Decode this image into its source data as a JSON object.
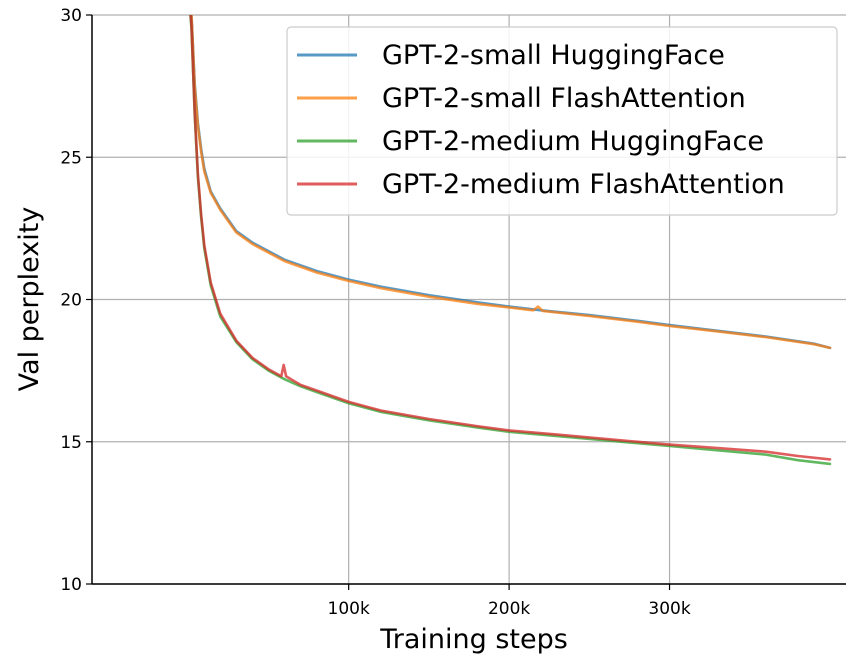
{
  "chart_data": {
    "type": "line",
    "title": "",
    "xlabel": "Training steps",
    "ylabel": "Val perplexity",
    "xlim": [
      -60000,
      410000
    ],
    "ylim": [
      10,
      30
    ],
    "x_ticks": [
      100000,
      200000,
      300000
    ],
    "x_tick_labels": [
      "100k",
      "200k",
      "300k"
    ],
    "y_ticks": [
      10,
      15,
      20,
      25,
      30
    ],
    "y_tick_labels": [
      "10",
      "15",
      "20",
      "25",
      "30"
    ],
    "grid": true,
    "legend_position": "top-right",
    "series": [
      {
        "name": "GPT-2-small HuggingFace",
        "color": "#1f77b4",
        "x": [
          0,
          2000,
          4000,
          6000,
          8000,
          10000,
          14000,
          20000,
          30000,
          40000,
          60000,
          80000,
          100000,
          120000,
          150000,
          180000,
          200000,
          220000,
          250000,
          280000,
          300000,
          330000,
          360000,
          390000,
          400000
        ],
        "y": [
          31,
          30,
          27.6,
          26.2,
          25.3,
          24.6,
          23.8,
          23.2,
          22.4,
          22.0,
          21.4,
          21.0,
          20.7,
          20.45,
          20.15,
          19.9,
          19.75,
          19.62,
          19.45,
          19.25,
          19.1,
          18.9,
          18.7,
          18.45,
          18.3
        ]
      },
      {
        "name": "GPT-2-small FlashAttention",
        "color": "#ff7f0e",
        "x": [
          0,
          2000,
          4000,
          6000,
          8000,
          10000,
          14000,
          20000,
          30000,
          40000,
          60000,
          80000,
          100000,
          120000,
          150000,
          180000,
          200000,
          215000,
          218000,
          221000,
          250000,
          280000,
          300000,
          330000,
          360000,
          390000,
          400000
        ],
        "y": [
          31,
          30,
          27.5,
          26.1,
          25.2,
          24.5,
          23.75,
          23.15,
          22.35,
          21.95,
          21.35,
          20.95,
          20.65,
          20.4,
          20.1,
          19.85,
          19.72,
          19.62,
          19.75,
          19.6,
          19.42,
          19.22,
          19.07,
          18.88,
          18.68,
          18.43,
          18.3
        ]
      },
      {
        "name": "GPT-2-medium HuggingFace",
        "color": "#2ca02c",
        "x": [
          0,
          2000,
          4000,
          6000,
          8000,
          10000,
          14000,
          20000,
          30000,
          40000,
          50000,
          60000,
          70000,
          80000,
          100000,
          120000,
          150000,
          180000,
          200000,
          230000,
          260000,
          300000,
          330000,
          360000,
          380000,
          400000
        ],
        "y": [
          31,
          29.5,
          26.5,
          24.3,
          22.9,
          21.8,
          20.5,
          19.4,
          18.5,
          17.9,
          17.5,
          17.2,
          16.95,
          16.75,
          16.35,
          16.05,
          15.75,
          15.5,
          15.35,
          15.2,
          15.05,
          14.85,
          14.7,
          14.55,
          14.35,
          14.22
        ]
      },
      {
        "name": "GPT-2-medium FlashAttention",
        "color": "#d62728",
        "x": [
          0,
          2000,
          4000,
          6000,
          8000,
          10000,
          14000,
          20000,
          30000,
          40000,
          50000,
          58000,
          59500,
          61000,
          62500,
          70000,
          80000,
          100000,
          120000,
          150000,
          180000,
          200000,
          230000,
          260000,
          300000,
          330000,
          360000,
          380000,
          400000
        ],
        "y": [
          31,
          29.6,
          26.6,
          24.4,
          23.0,
          21.9,
          20.6,
          19.5,
          18.55,
          17.95,
          17.55,
          17.3,
          17.7,
          17.3,
          17.25,
          17.0,
          16.8,
          16.4,
          16.1,
          15.8,
          15.55,
          15.4,
          15.25,
          15.1,
          14.9,
          14.78,
          14.65,
          14.5,
          14.38
        ]
      }
    ]
  }
}
